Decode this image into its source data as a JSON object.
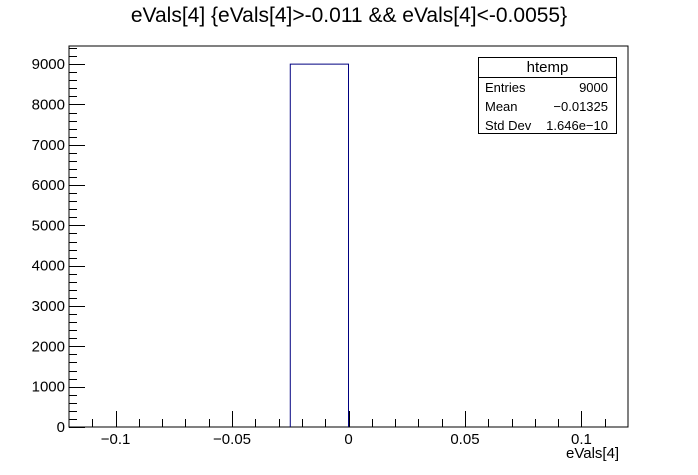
{
  "chart_data": {
    "type": "bar",
    "title": "eVals[4] {eVals[4]>-0.011 && eVals[4]<-0.0055}",
    "xlabel": "eVals[4]",
    "ylabel": "",
    "xlim": [
      -0.12,
      0.12
    ],
    "ylim": [
      0,
      9450
    ],
    "bins": [
      {
        "x_low": -0.025,
        "x_high": 0.0,
        "value": 9000
      }
    ],
    "x_ticks": [
      "−0.1",
      "−0.05",
      "0",
      "0.05",
      "0.1"
    ],
    "x_tick_values": [
      -0.1,
      -0.05,
      0,
      0.05,
      0.1
    ],
    "y_ticks": [
      "0",
      "1000",
      "2000",
      "3000",
      "4000",
      "5000",
      "6000",
      "7000",
      "8000",
      "9000"
    ],
    "y_tick_values": [
      0,
      1000,
      2000,
      3000,
      4000,
      5000,
      6000,
      7000,
      8000,
      9000
    ],
    "grid": false,
    "colors": {
      "bar_line": "#000080",
      "frame": "#000000"
    }
  },
  "stats_box": {
    "name": "htemp",
    "rows": [
      {
        "label": "Entries",
        "value": "9000"
      },
      {
        "label": "Mean",
        "value": "−0.01325"
      },
      {
        "label": "Std Dev",
        "value": "1.646e−10"
      }
    ]
  }
}
